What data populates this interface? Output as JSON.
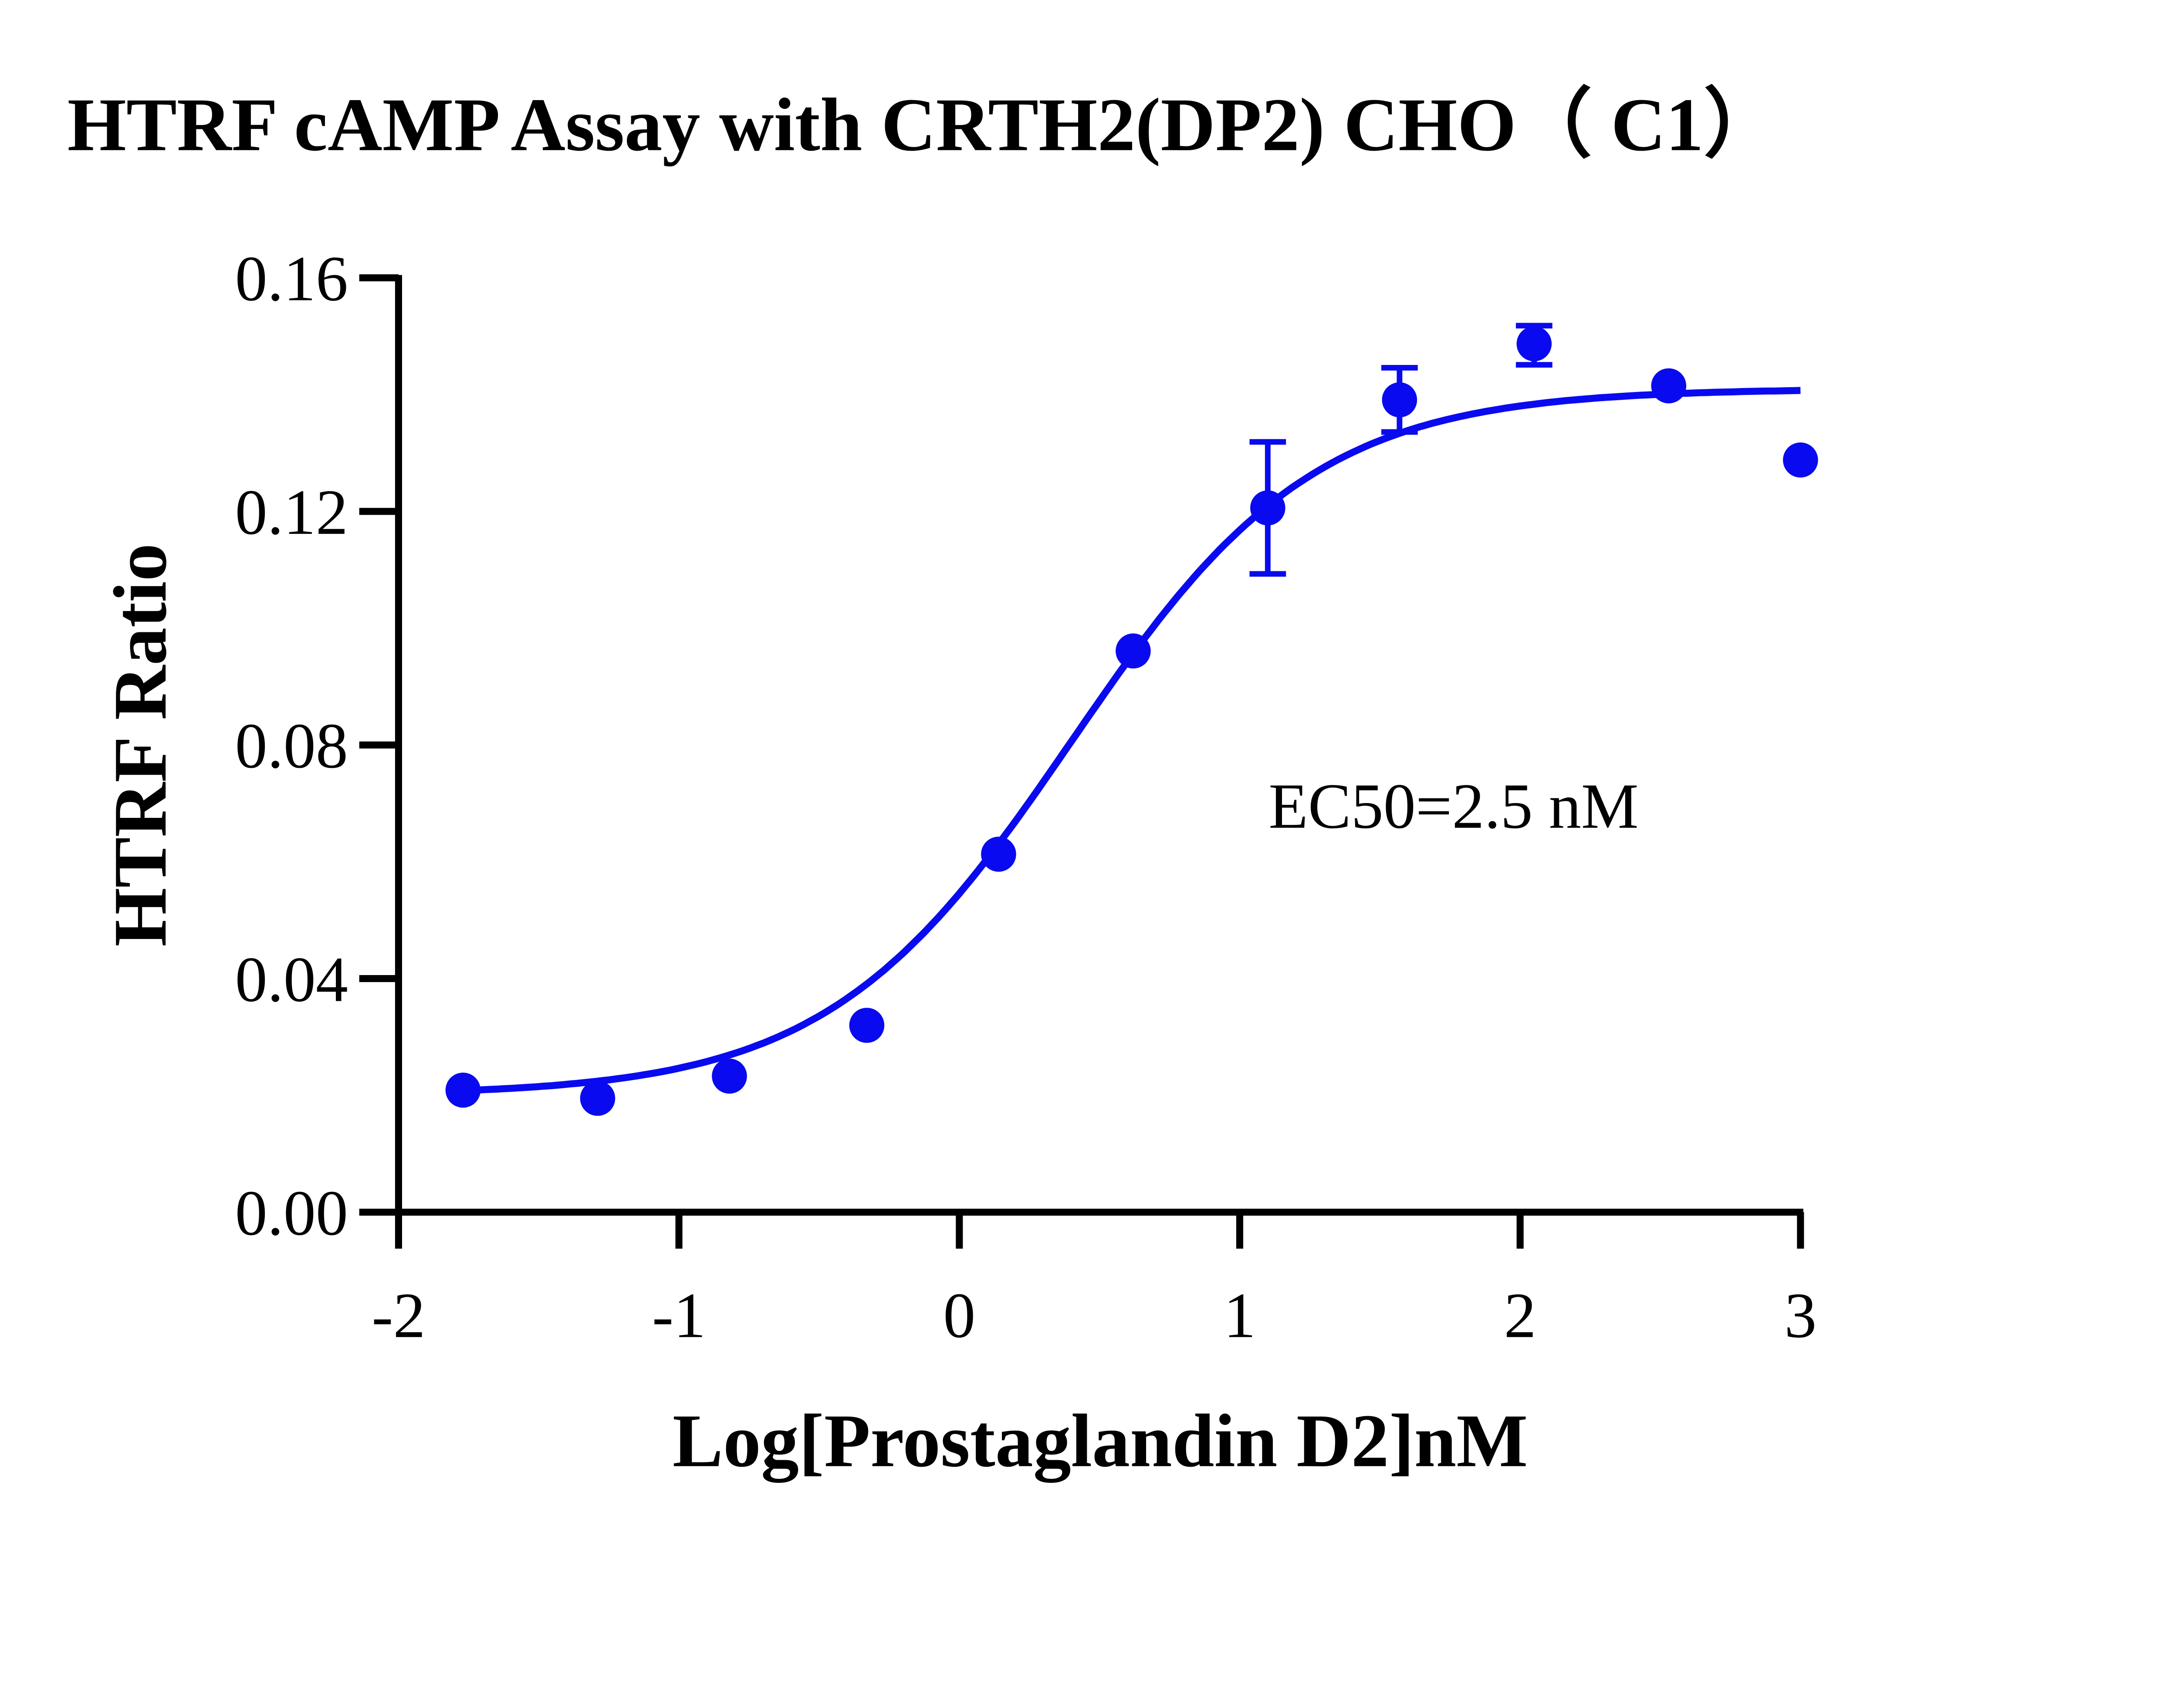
{
  "chart_data": {
    "type": "scatter",
    "title": "HTRF cAMP Assay with CRTH2(DP2) CHO（ C1）",
    "xlabel": "Log[Prostaglandin D2]nM",
    "ylabel": "HTRF Ratio",
    "xlim": [
      -2,
      3
    ],
    "ylim": [
      0,
      0.16
    ],
    "x_ticks": [
      -2,
      -1,
      0,
      1,
      2,
      3
    ],
    "x_tick_labels": [
      "-2",
      "-1",
      "0",
      "1",
      "2",
      "3"
    ],
    "y_ticks": [
      0,
      0.04,
      0.08,
      0.12,
      0.16
    ],
    "y_tick_labels": [
      "0.00",
      "0.04",
      "0.08",
      "0.12",
      "0.16"
    ],
    "grid": false,
    "color": "#0a0af0",
    "annotation": "EC50=2.5 nM",
    "series": [
      {
        "x": [
          -1.77,
          -1.29,
          -0.82,
          -0.33,
          0.14,
          0.62,
          1.1,
          1.57,
          2.05,
          2.53,
          3.0
        ],
        "y": [
          0.0209,
          0.0195,
          0.0233,
          0.032,
          0.0613,
          0.0961,
          0.1206,
          0.1391,
          0.1487,
          0.1415,
          0.1288
        ],
        "error_low": [
          null,
          null,
          null,
          null,
          null,
          null,
          0.1093,
          0.1336,
          0.1451,
          null,
          null
        ],
        "error_high": [
          null,
          null,
          null,
          null,
          null,
          null,
          0.1319,
          0.1446,
          0.1518,
          null,
          null
        ]
      }
    ],
    "fit": {
      "model": "sigmoidal dose-response",
      "bottom": 0.02,
      "top": 0.141,
      "ec50_nM": 2.5,
      "hill_slope": 1.0
    }
  }
}
